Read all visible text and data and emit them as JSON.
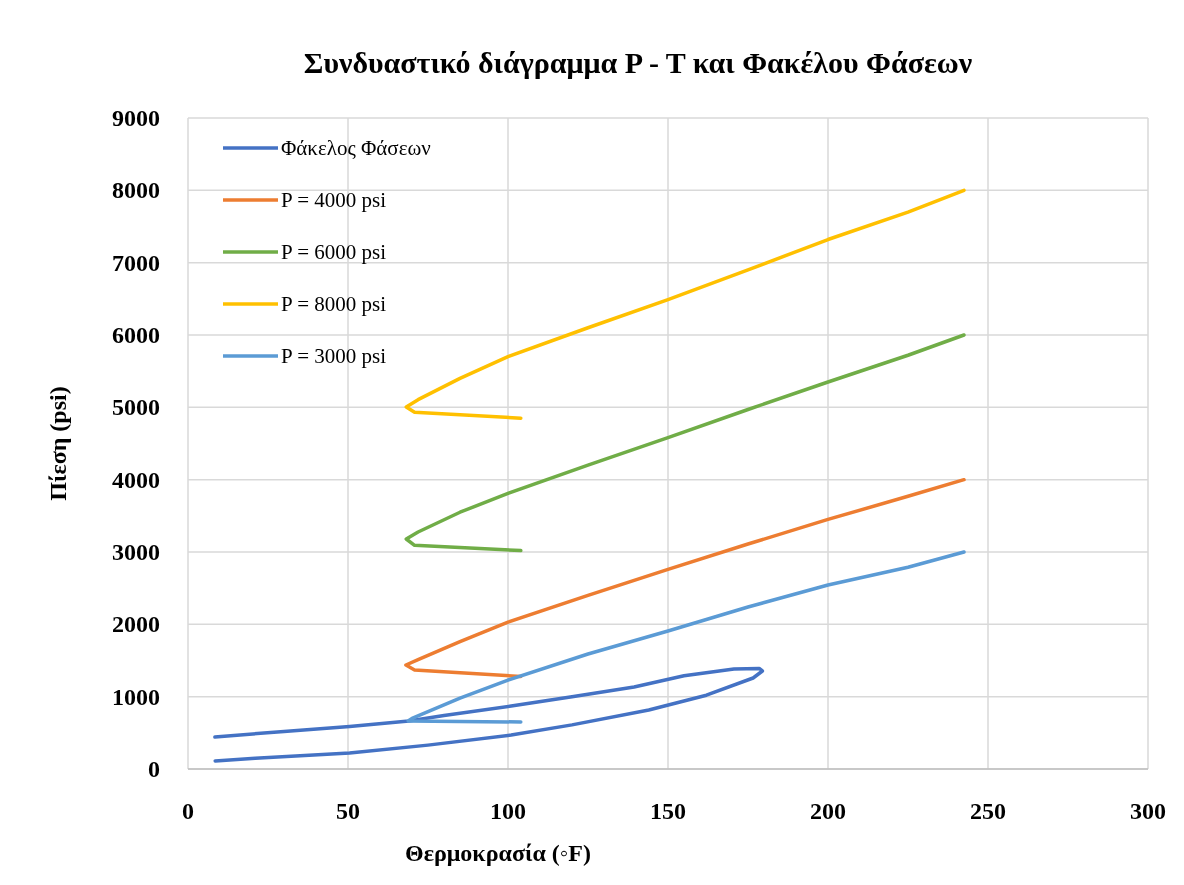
{
  "chart_data": {
    "type": "line",
    "title": "Συνδυαστικό διάγραμμα P - T και Φακέλου Φάσεων",
    "xlabel": "Θερμοκρασία (◦F)",
    "ylabel": "Πίεση (psi)",
    "xlim": [
      0,
      300
    ],
    "xticks": [
      0,
      50,
      100,
      150,
      200,
      250,
      300
    ],
    "ylim": [
      0,
      9000
    ],
    "yticks": [
      0,
      1000,
      2000,
      3000,
      4000,
      5000,
      6000,
      7000,
      8000,
      9000
    ],
    "grid": true,
    "legend": "top left",
    "marker": "none",
    "line_style": "solid",
    "series": [
      {
        "name": "Φάκελος Φάσεων",
        "color": "#4472c4",
        "x": [
          8.5,
          21,
          50.5,
          75,
          101,
          120,
          144,
          162,
          176.6,
          179.5,
          178.5,
          170.6,
          155,
          139.4,
          120,
          101,
          80,
          69,
          50.5,
          30,
          8.4
        ],
        "values": [
          111,
          150,
          221,
          330,
          470,
          610,
          816,
          1020,
          1258,
          1355,
          1390,
          1383,
          1290,
          1134,
          1000,
          871,
          740,
          664,
          588,
          520,
          442
        ]
      },
      {
        "name": "P = 4000 psi",
        "color": "#ed7d31",
        "x": [
          104,
          70.8,
          68.1,
          71.9,
          85,
          100,
          125,
          150,
          175,
          200,
          225,
          242.5
        ],
        "values": [
          1280,
          1370,
          1438,
          1511,
          1760,
          2030,
          2400,
          2760,
          3110,
          3450,
          3770,
          4000
        ]
      },
      {
        "name": "P = 6000 psi",
        "color": "#70ad47",
        "x": [
          104,
          70.8,
          68.2,
          71.9,
          85,
          100,
          125,
          150,
          175,
          200,
          225,
          242.5
        ],
        "values": [
          3020,
          3093,
          3180,
          3277,
          3550,
          3810,
          4200,
          4580,
          4970,
          5350,
          5720,
          6000
        ]
      },
      {
        "name": "P = 8000 psi",
        "color": "#ffc000",
        "x": [
          104,
          70.8,
          68.2,
          71.9,
          85,
          100,
          125,
          150,
          175,
          200,
          225,
          242.5
        ],
        "values": [
          4850,
          4931,
          5005,
          5106,
          5400,
          5700,
          6100,
          6490,
          6900,
          7320,
          7700,
          8000
        ]
      },
      {
        "name": "P = 3000 psi",
        "color": "#5b9bd5",
        "x": [
          104,
          68.8,
          70,
          85,
          100,
          125,
          150,
          175,
          200,
          225,
          242.5
        ],
        "values": [
          650,
          664,
          700,
          980,
          1230,
          1590,
          1908,
          2240,
          2544,
          2790,
          3000
        ]
      }
    ]
  }
}
